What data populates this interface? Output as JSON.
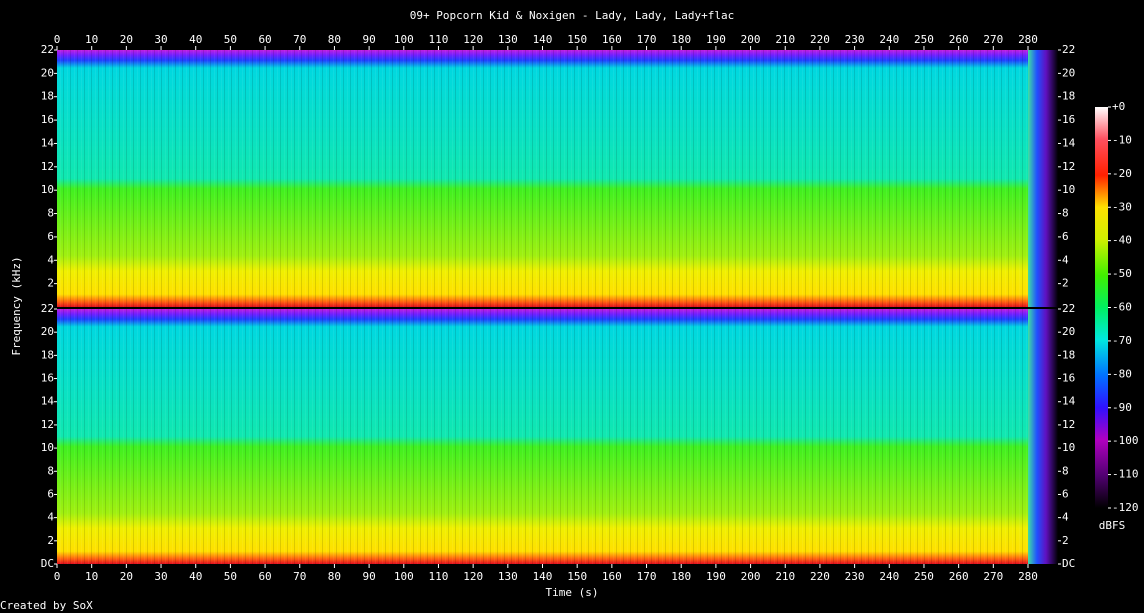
{
  "chart_data": {
    "type": "spectrogram",
    "title": "09+ Popcorn Kid & Noxigen - Lady, Lady, Lady+flac",
    "xlabel": "Time (s)",
    "ylabel": "Frequency (kHz)",
    "xlim": [
      0,
      280
    ],
    "xticks": [
      0,
      10,
      20,
      30,
      40,
      50,
      60,
      70,
      80,
      90,
      100,
      110,
      120,
      130,
      140,
      150,
      160,
      170,
      180,
      190,
      200,
      210,
      220,
      230,
      240,
      250,
      260,
      270,
      280
    ],
    "panels": [
      {
        "ylim": [
          0,
          22
        ],
        "yticks": [
          2,
          4,
          6,
          8,
          10,
          12,
          14,
          16,
          18,
          20,
          22
        ]
      },
      {
        "ylim": [
          0,
          22
        ],
        "yticks": [
          {
            "value": 0,
            "label": "DC"
          },
          2,
          4,
          6,
          8,
          10,
          12,
          14,
          16,
          18,
          20,
          22
        ]
      }
    ],
    "colorbar": {
      "label": "dBFS",
      "lim": [
        -120,
        0
      ],
      "ticks": [
        {
          "value": 0,
          "label": "+0"
        },
        -10,
        -20,
        -30,
        -40,
        -50,
        -60,
        -70,
        -80,
        -90,
        -100,
        -110,
        -120
      ]
    },
    "footer": "Created by SoX"
  }
}
